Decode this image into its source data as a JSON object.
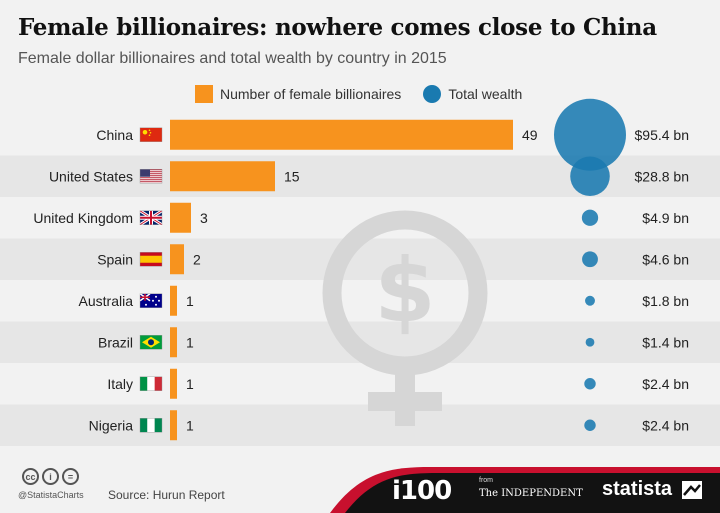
{
  "title": "Female billionaires: nowhere comes close to China",
  "subtitle": "Female dollar billionaires and total wealth by country in 2015",
  "legend": {
    "bars": "Number of female billionaires",
    "dots": "Total wealth"
  },
  "colors": {
    "bar": "#f7931e",
    "dot": "#1a7ab0",
    "stripe": "#e6e6e6",
    "watermark": "#d6d6d6"
  },
  "chart_data": {
    "type": "bar",
    "orientation": "horizontal",
    "categories": [
      "China",
      "United States",
      "United Kingdom",
      "Spain",
      "Australia",
      "Brazil",
      "Italy",
      "Nigeria"
    ],
    "series": [
      {
        "name": "Number of female billionaires",
        "values": [
          49,
          15,
          3,
          2,
          1,
          1,
          1,
          1
        ],
        "labels": [
          "49",
          "15",
          "3",
          "2",
          "1",
          "1",
          "1",
          "1"
        ]
      },
      {
        "name": "Total wealth",
        "values": [
          95.4,
          28.8,
          4.9,
          4.6,
          1.8,
          1.4,
          2.4,
          2.4
        ],
        "labels": [
          "$95.4 bn",
          "$28.8 bn",
          "$4.9 bn",
          "$4.6 bn",
          "$1.8 bn",
          "$1.4 bn",
          "$2.4 bn",
          "$2.4 bn"
        ]
      }
    ],
    "flags": [
      "china-flag-icon",
      "usa-flag-icon",
      "uk-flag-icon",
      "spain-flag-icon",
      "australia-flag-icon",
      "brazil-flag-icon",
      "italy-flag-icon",
      "nigeria-flag-icon"
    ],
    "watermark": "female-dollar-symbol-icon",
    "grid": false,
    "legend_position": "top"
  },
  "footer": {
    "license_icons": [
      "cc-icon",
      "by-icon",
      "nd-icon"
    ],
    "license_glyphs": [
      "cc",
      "i",
      "="
    ],
    "handle": "@StatistaCharts",
    "source": "Source: Hurun Report",
    "brand_i100": "i100",
    "brand_from": "from",
    "brand_independent": "The INDEPENDENT",
    "brand_statista": "statista"
  }
}
